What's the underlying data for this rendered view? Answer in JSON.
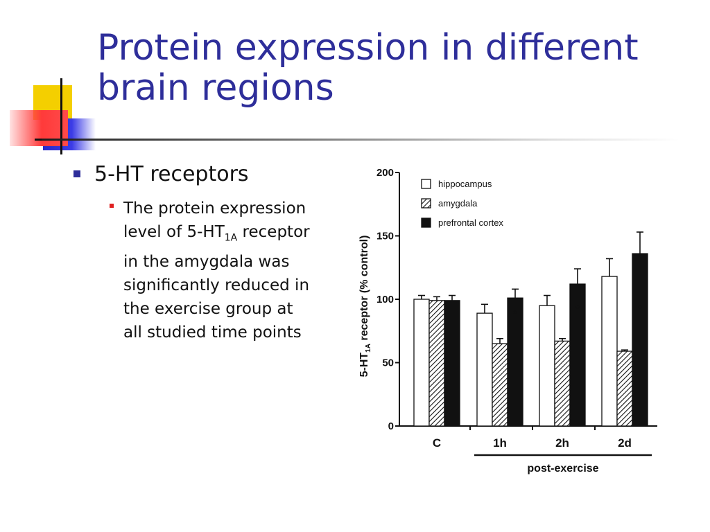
{
  "slide": {
    "title_line1": "Protein expression in different",
    "title_line2": "brain regions",
    "bullet_1": "5-HT receptors",
    "bullet_2_part1": "The protein expression level of 5-HT",
    "bullet_2_sub": "1A",
    "bullet_2_part2": " receptor in the amygdala was significantly reduced in the exercise group at all studied time points"
  },
  "colors": {
    "title": "#2e2e9a",
    "bullet_l1": "#2e2e9a",
    "bullet_l2": "#e02020",
    "deco_yellow": "#f4cf00",
    "deco_blue": "#3333d6",
    "deco_red": "#ff3a3a"
  },
  "chart_data": {
    "type": "bar",
    "categories": [
      "C",
      "1h",
      "2h",
      "2d"
    ],
    "series": [
      {
        "name": "hippocampus",
        "fill": "white",
        "values": [
          100,
          89,
          95,
          118
        ],
        "errors": [
          3,
          7,
          8,
          14
        ]
      },
      {
        "name": "amygdala",
        "fill": "hatched",
        "values": [
          99,
          65,
          67,
          59
        ],
        "errors": [
          3,
          4,
          2,
          1
        ]
      },
      {
        "name": "prefrontal cortex",
        "fill": "black",
        "values": [
          99,
          101,
          112,
          136
        ],
        "errors": [
          4,
          7,
          12,
          17
        ]
      }
    ],
    "significance_marker": "*",
    "significant_categories": [
      "1h",
      "2h",
      "2d"
    ],
    "ylabel_prefix": "5-HT",
    "ylabel_sub": "1A",
    "ylabel_suffix": " receptor (% control)",
    "yticks": [
      "0",
      "50",
      "100",
      "150",
      "200"
    ],
    "ylim": [
      0,
      200
    ],
    "group_label": "post-exercise",
    "grouped_categories": [
      "1h",
      "2h",
      "2d"
    ],
    "legend_position": "top-right"
  }
}
